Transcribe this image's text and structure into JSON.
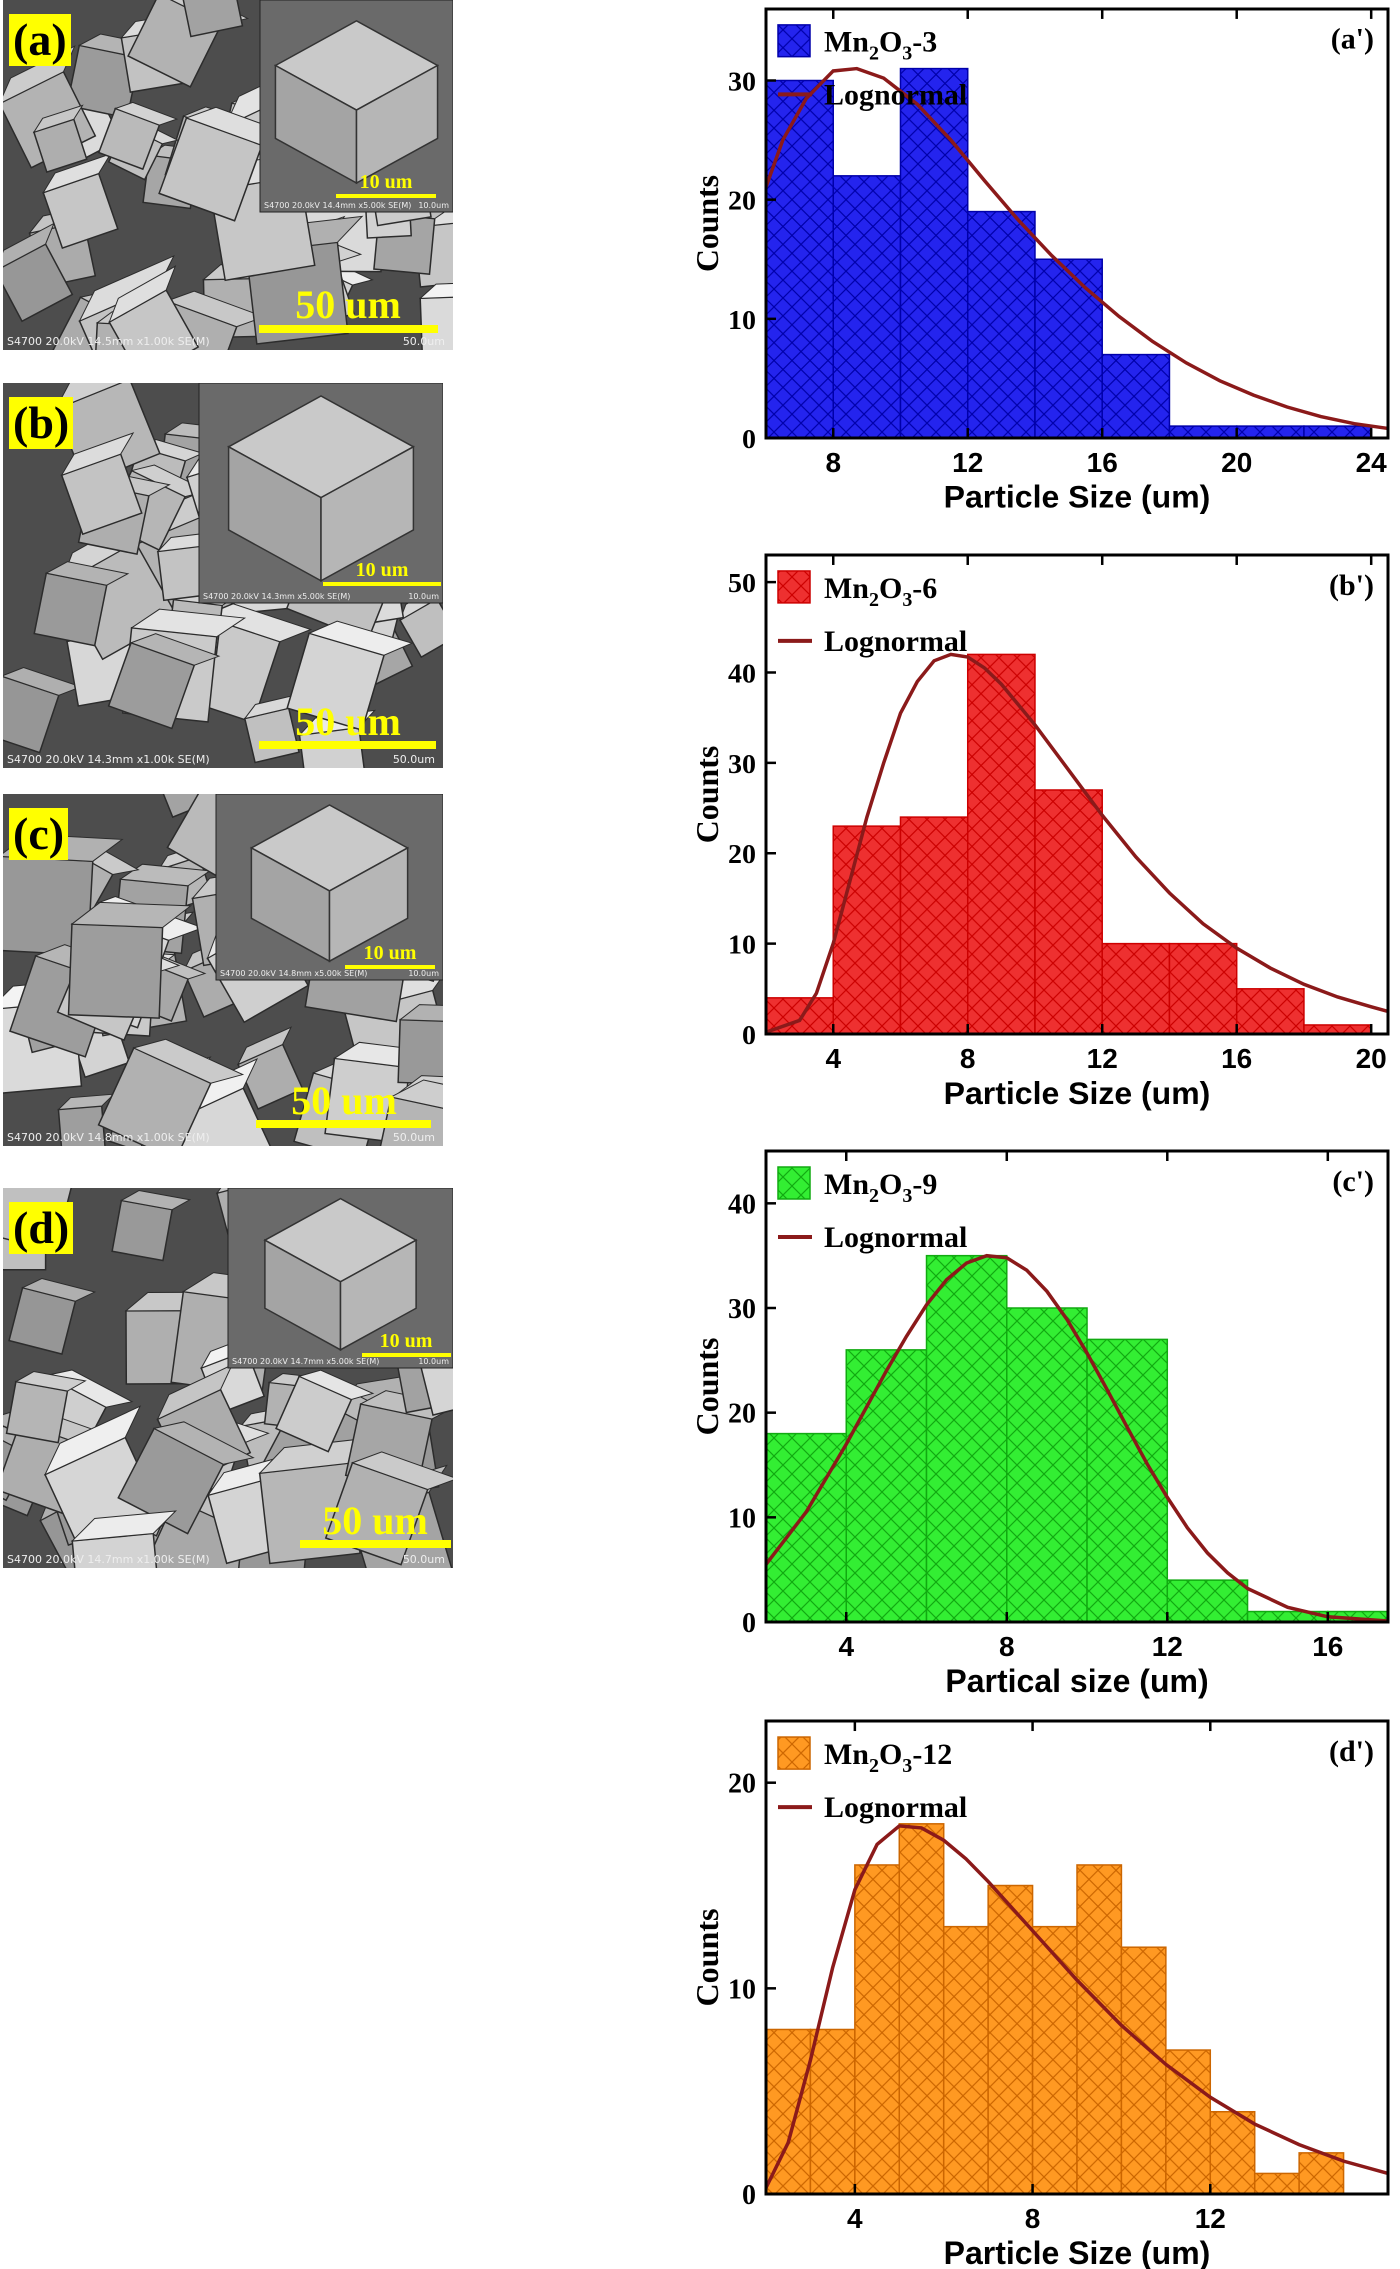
{
  "panels": [
    {
      "label": "(a)",
      "sem_footer": "S4700 20.0kV 14.5mm x1.00k SE(M)",
      "sem_footer_right": "50.0um",
      "inset_footer": "S4700 20.0kV 14.4mm x5.00k SE(M)",
      "inset_footer_right": "10.0um",
      "scale_main": "50 um",
      "scale_inset": "10 um"
    },
    {
      "label": "(b)",
      "sem_footer": "S4700 20.0kV 14.3mm x1.00k SE(M)",
      "sem_footer_right": "50.0um",
      "inset_footer": "S4700 20.0kV 14.3mm x5.00k SE(M)",
      "inset_footer_right": "10.0um",
      "scale_main": "50 um",
      "scale_inset": "10 um"
    },
    {
      "label": "(c)",
      "sem_footer": "S4700 20.0kV 14.8mm x1.00k SE(M)",
      "sem_footer_right": "50.0um",
      "inset_footer": "S4700 20.0kV 14.8mm x5.00k SE(M)",
      "inset_footer_right": "10.0um",
      "scale_main": "50 um",
      "scale_inset": "10 um"
    },
    {
      "label": "(d)",
      "sem_footer": "S4700 20.0kV 14.7mm x1.00k SE(M)",
      "sem_footer_right": "50.0um",
      "inset_footer": "S4700 20.0kV 14.7mm x5.00k SE(M)",
      "inset_footer_right": "10.0um",
      "scale_main": "50 um",
      "scale_inset": "10 um"
    }
  ],
  "chart_data": [
    {
      "type": "bar",
      "panel_label": "(a')",
      "series_name": "Mn2O3-3",
      "fit_name": "Lognormal",
      "xlabel": "Particle Size (um)",
      "ylabel": "Counts",
      "xlim": [
        6,
        24.5
      ],
      "ylim": [
        0,
        36
      ],
      "xticks": [
        8,
        12,
        16,
        20,
        24
      ],
      "yticks": [
        0,
        10,
        20,
        30
      ],
      "bin_edges": [
        6,
        8,
        10,
        12,
        14,
        16,
        18,
        20,
        22,
        24
      ],
      "values": [
        30,
        22,
        31,
        19,
        15,
        7,
        1,
        1,
        1
      ],
      "fit_x": [
        5.8,
        6.5,
        7.2,
        8,
        8.7,
        9.5,
        10.5,
        11.5,
        12.5,
        13.5,
        14.5,
        15.5,
        16.5,
        17.5,
        18.5,
        19.5,
        20.5,
        21.5,
        22.5,
        23.5,
        24.5
      ],
      "fit_y": [
        19.5,
        25,
        28.5,
        30.8,
        31,
        30.2,
        28,
        25,
        21.6,
        18.3,
        15.3,
        12.6,
        10.2,
        8.1,
        6.3,
        4.8,
        3.6,
        2.6,
        1.8,
        1.2,
        0.8
      ],
      "bar_color": "#2424ee",
      "bar_stroke": "#0000aa",
      "fit_color": "#8b1a1a"
    },
    {
      "type": "bar",
      "panel_label": "(b')",
      "series_name": "Mn2O3-6",
      "fit_name": "Lognormal",
      "xlabel": "Particle Size (um)",
      "ylabel": "Counts",
      "xlim": [
        2,
        20.5
      ],
      "ylim": [
        0,
        53
      ],
      "xticks": [
        4,
        8,
        12,
        16,
        20
      ],
      "yticks": [
        0,
        10,
        20,
        30,
        40,
        50
      ],
      "bin_edges": [
        2,
        4,
        6,
        8,
        10,
        12,
        14,
        16,
        18,
        20
      ],
      "values": [
        4,
        23,
        24,
        42,
        27,
        10,
        10,
        5,
        1
      ],
      "fit_x": [
        2,
        3,
        3.5,
        4,
        4.5,
        5,
        5.5,
        6,
        6.5,
        7,
        7.5,
        8,
        8.5,
        9,
        10,
        11,
        12,
        13,
        14,
        15,
        16,
        17,
        18,
        19,
        20,
        20.5
      ],
      "fit_y": [
        0.2,
        1.5,
        4.5,
        10,
        17,
        24,
        30,
        35.5,
        39,
        41.3,
        42,
        41.7,
        40.5,
        38.7,
        34.2,
        29.2,
        24.2,
        19.6,
        15.6,
        12.2,
        9.5,
        7.3,
        5.5,
        4.1,
        3.0,
        2.5
      ],
      "bar_color": "#ee3030",
      "bar_stroke": "#cc0000",
      "fit_color": "#8b1a1a"
    },
    {
      "type": "bar",
      "panel_label": "(c')",
      "series_name": "Mn2O3-9",
      "fit_name": "Lognormal",
      "xlabel": "Partical size (um)",
      "ylabel": "Counts",
      "xlim": [
        2,
        17.5
      ],
      "ylim": [
        0,
        45
      ],
      "xticks": [
        4,
        8,
        12,
        16
      ],
      "yticks": [
        0,
        10,
        20,
        30,
        40
      ],
      "bin_edges": [
        2,
        4,
        6,
        8,
        10,
        12,
        14,
        16,
        18
      ],
      "values": [
        18,
        26,
        35,
        30,
        27,
        4,
        1,
        1
      ],
      "fit_x": [
        2,
        3,
        4,
        5,
        5.5,
        6,
        6.5,
        7,
        7.5,
        8,
        8.5,
        9,
        9.5,
        10,
        10.5,
        11,
        11.5,
        12,
        12.5,
        13,
        13.5,
        14,
        15,
        16,
        17.5
      ],
      "fit_y": [
        5.5,
        10.5,
        17,
        24,
        27.3,
        30.3,
        32.7,
        34.3,
        35,
        34.8,
        33.6,
        31.6,
        28.9,
        25.7,
        22.2,
        18.6,
        15.1,
        11.9,
        9.0,
        6.6,
        4.7,
        3.2,
        1.4,
        0.5,
        0.1
      ],
      "bar_color": "#33ee33",
      "bar_stroke": "#11aa11",
      "fit_color": "#8b1a1a"
    },
    {
      "type": "bar",
      "panel_label": "(d')",
      "series_name": "Mn2O3-12",
      "fit_name": "Lognormal",
      "xlabel": "Particle Size (um)",
      "ylabel": "Counts",
      "xlim": [
        2,
        16
      ],
      "ylim": [
        0,
        23
      ],
      "xticks": [
        4,
        8,
        12
      ],
      "yticks": [
        0,
        10,
        20
      ],
      "bin_edges": [
        2,
        3,
        4,
        5,
        6,
        7,
        8,
        9,
        10,
        11,
        12,
        13,
        14,
        15
      ],
      "values": [
        8,
        8,
        16,
        18,
        13,
        15,
        13,
        16,
        12,
        7,
        4,
        1,
        2
      ],
      "fit_x": [
        2,
        2.5,
        3,
        3.5,
        4,
        4.5,
        5,
        5.5,
        6,
        6.5,
        7,
        8,
        9,
        10,
        11,
        12,
        13,
        14,
        15,
        16
      ],
      "fit_y": [
        0.3,
        2.5,
        6.5,
        11,
        14.8,
        17,
        17.9,
        17.8,
        17.2,
        16.3,
        15.2,
        12.8,
        10.4,
        8.2,
        6.3,
        4.7,
        3.4,
        2.4,
        1.6,
        1.0
      ],
      "bar_color": "#ff9922",
      "bar_stroke": "#cc6600",
      "fit_color": "#8b1a1a"
    }
  ]
}
